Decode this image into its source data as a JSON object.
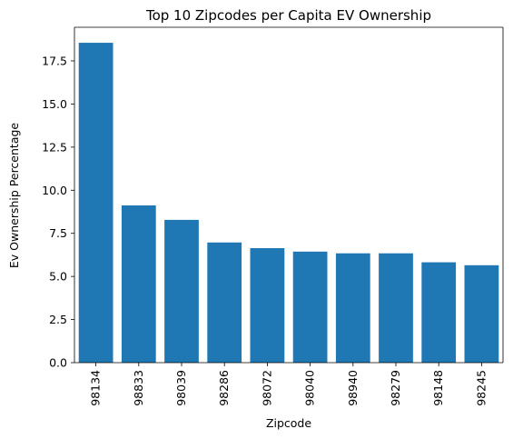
{
  "chart_data": {
    "type": "bar",
    "title": "Top 10 Zipcodes per Capita EV Ownership",
    "xlabel": "Zipcode",
    "ylabel": "Ev Ownership Percentage",
    "categories": [
      "98134",
      "98833",
      "98039",
      "98286",
      "98072",
      "98040",
      "98940",
      "98279",
      "98148",
      "98245"
    ],
    "values": [
      18.55,
      9.12,
      8.28,
      6.97,
      6.64,
      6.44,
      6.34,
      6.34,
      5.82,
      5.65
    ],
    "ylim": [
      0,
      18.55
    ],
    "yticks": [
      "0.0",
      "2.5",
      "5.0",
      "7.5",
      "10.0",
      "12.5",
      "15.0",
      "17.5"
    ],
    "ytick_values": [
      0,
      2.5,
      5,
      7.5,
      10,
      12.5,
      15,
      17.5
    ],
    "bar_color": "#1f77b4",
    "grid": false,
    "legend": "none"
  }
}
